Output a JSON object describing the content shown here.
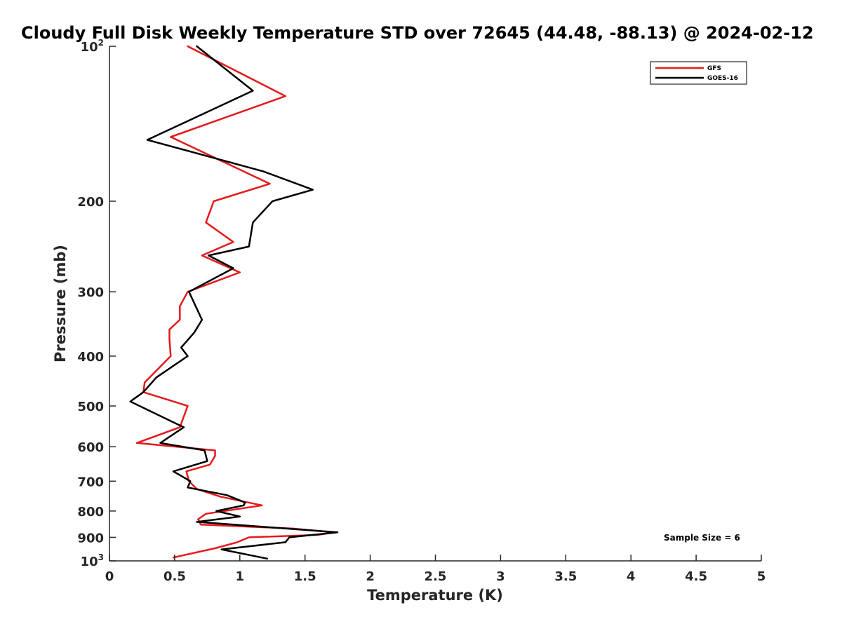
{
  "chart_data": {
    "type": "line",
    "title": "Cloudy Full Disk Weekly Temperature STD over 72645 (44.48, -88.13) @ 2024-02-12",
    "xlabel": "Temperature (K)",
    "ylabel": "Pressure (mb)",
    "xlim": [
      0,
      5
    ],
    "ylim": [
      100,
      1000
    ],
    "yscale": "log",
    "y_reversed": true,
    "grid": false,
    "legend_position": "top-right",
    "xticks": [
      0,
      0.5,
      1,
      1.5,
      2,
      2.5,
      3,
      3.5,
      4,
      4.5,
      5
    ],
    "xtick_labels": [
      "0",
      "0.5",
      "1",
      "1.5",
      "2",
      "2.5",
      "3",
      "3.5",
      "4",
      "4.5",
      "5"
    ],
    "yticks": [
      {
        "value": 100,
        "label": "10",
        "exp": "2"
      },
      {
        "value": 200,
        "label": "200",
        "exp": ""
      },
      {
        "value": 300,
        "label": "300",
        "exp": ""
      },
      {
        "value": 400,
        "label": "400",
        "exp": ""
      },
      {
        "value": 500,
        "label": "500",
        "exp": ""
      },
      {
        "value": 600,
        "label": "600",
        "exp": ""
      },
      {
        "value": 700,
        "label": "700",
        "exp": ""
      },
      {
        "value": 800,
        "label": "800",
        "exp": ""
      },
      {
        "value": 900,
        "label": "900",
        "exp": ""
      },
      {
        "value": 1000,
        "label": "10",
        "exp": "3"
      }
    ],
    "annotation": "Sample Size = 6",
    "series": [
      {
        "name": "GFS",
        "color": "#e41a1c",
        "points": [
          [
            0.6,
            100
          ],
          [
            1.35,
            125
          ],
          [
            0.47,
            150
          ],
          [
            1.23,
            185
          ],
          [
            0.8,
            200
          ],
          [
            0.74,
            220
          ],
          [
            0.95,
            240
          ],
          [
            0.71,
            255
          ],
          [
            1.0,
            275
          ],
          [
            0.6,
            300
          ],
          [
            0.54,
            320
          ],
          [
            0.54,
            340
          ],
          [
            0.46,
            355
          ],
          [
            0.46,
            370
          ],
          [
            0.47,
            400
          ],
          [
            0.27,
            450
          ],
          [
            0.26,
            470
          ],
          [
            0.6,
            500
          ],
          [
            0.54,
            550
          ],
          [
            0.21,
            590
          ],
          [
            0.81,
            610
          ],
          [
            0.81,
            625
          ],
          [
            0.77,
            650
          ],
          [
            0.59,
            670
          ],
          [
            0.61,
            700
          ],
          [
            0.67,
            725
          ],
          [
            0.85,
            750
          ],
          [
            1.17,
            780
          ],
          [
            0.74,
            810
          ],
          [
            0.68,
            830
          ],
          [
            0.7,
            850
          ],
          [
            1.4,
            865
          ],
          [
            1.72,
            880
          ],
          [
            1.6,
            890
          ],
          [
            1.07,
            900
          ],
          [
            0.98,
            920
          ],
          [
            0.81,
            945
          ],
          [
            0.49,
            985
          ]
        ]
      },
      {
        "name": "GOES-16",
        "color": "#000000",
        "points": [
          [
            0.67,
            100
          ],
          [
            1.1,
            122
          ],
          [
            0.29,
            152
          ],
          [
            1.18,
            175
          ],
          [
            1.56,
            190
          ],
          [
            1.25,
            200
          ],
          [
            1.1,
            220
          ],
          [
            1.07,
            245
          ],
          [
            0.76,
            255
          ],
          [
            0.95,
            270
          ],
          [
            0.61,
            300
          ],
          [
            0.71,
            340
          ],
          [
            0.65,
            360
          ],
          [
            0.55,
            385
          ],
          [
            0.6,
            400
          ],
          [
            0.36,
            440
          ],
          [
            0.26,
            470
          ],
          [
            0.16,
            490
          ],
          [
            0.37,
            520
          ],
          [
            0.57,
            550
          ],
          [
            0.39,
            590
          ],
          [
            0.73,
            610
          ],
          [
            0.75,
            640
          ],
          [
            0.49,
            670
          ],
          [
            0.62,
            700
          ],
          [
            0.6,
            720
          ],
          [
            0.9,
            745
          ],
          [
            1.04,
            770
          ],
          [
            1.03,
            780
          ],
          [
            0.82,
            800
          ],
          [
            1.0,
            820
          ],
          [
            0.67,
            840
          ],
          [
            1.75,
            880
          ],
          [
            1.38,
            900
          ],
          [
            1.35,
            920
          ],
          [
            0.86,
            950
          ],
          [
            1.21,
            990
          ]
        ]
      }
    ]
  }
}
